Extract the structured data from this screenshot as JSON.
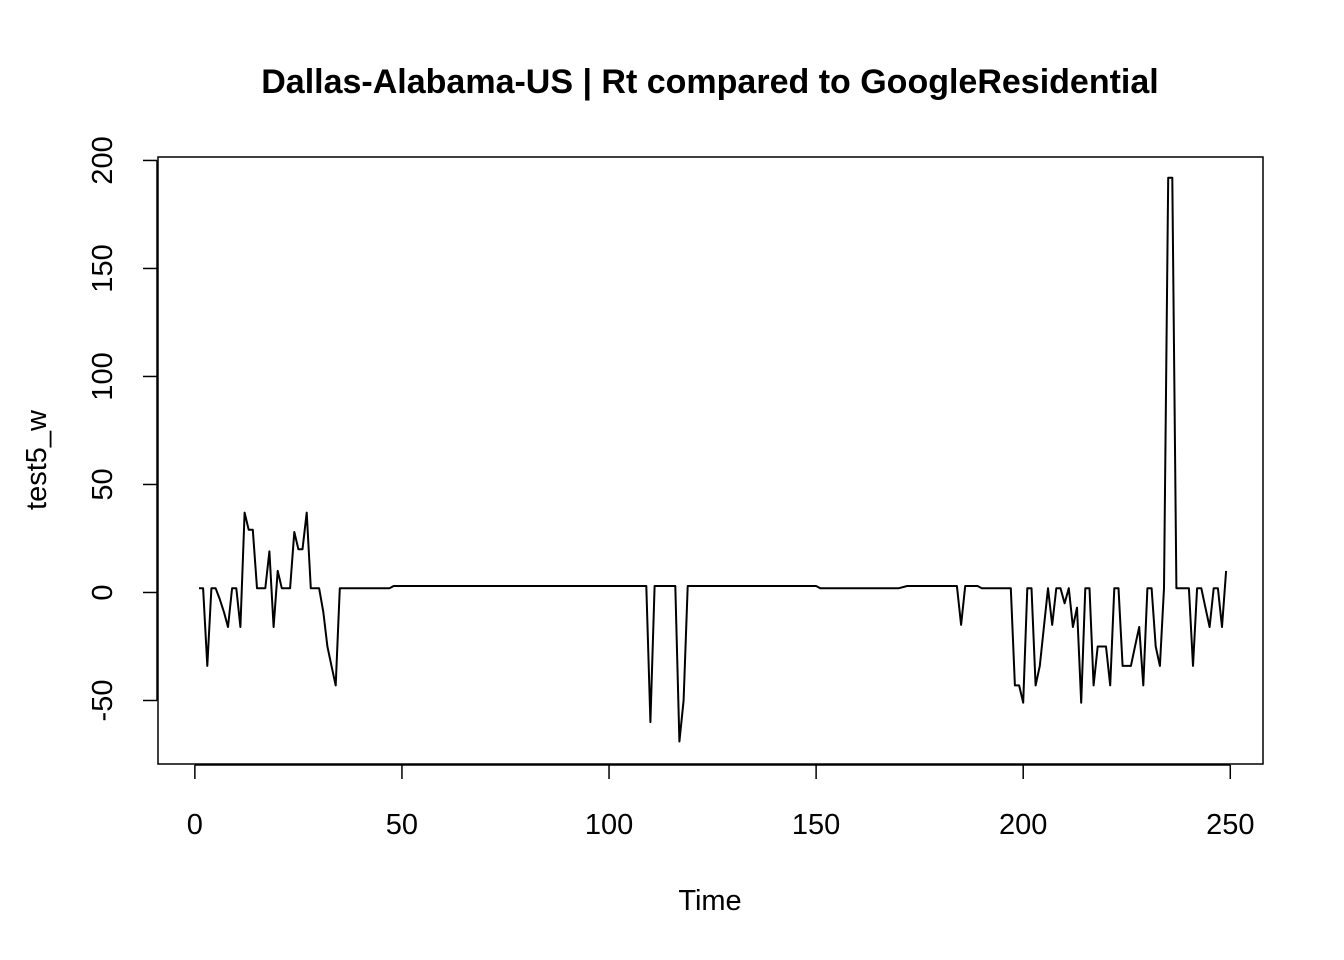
{
  "chart_data": {
    "type": "line",
    "title": "Dallas-Alabama-US | Rt compared to GoogleResidential",
    "xlabel": "Time",
    "ylabel": "test5_w",
    "xlim": [
      -8.9,
      257.9
    ],
    "ylim": [
      -79.4,
      201.6
    ],
    "xticks": [
      0,
      50,
      100,
      150,
      200,
      250
    ],
    "yticks": [
      -50,
      0,
      50,
      100,
      150,
      200
    ],
    "xtick_labels": [
      "0",
      "50",
      "100",
      "150",
      "200",
      "250"
    ],
    "ytick_labels": [
      "-50",
      "0",
      "50",
      "100",
      "150",
      "200"
    ],
    "grid": false,
    "legend": "none",
    "series": [
      {
        "color": "#000000",
        "points": [
          [
            1,
            2
          ],
          [
            2,
            2
          ],
          [
            3,
            -34
          ],
          [
            4,
            2
          ],
          [
            5,
            2
          ],
          [
            6,
            -3
          ],
          [
            7,
            -9
          ],
          [
            8,
            -16
          ],
          [
            9,
            2
          ],
          [
            10,
            2
          ],
          [
            11,
            -16
          ],
          [
            12,
            37
          ],
          [
            13,
            29
          ],
          [
            14,
            29
          ],
          [
            15,
            2
          ],
          [
            16,
            2
          ],
          [
            17,
            2
          ],
          [
            18,
            19
          ],
          [
            19,
            -16
          ],
          [
            20,
            10
          ],
          [
            21,
            2
          ],
          [
            22,
            2
          ],
          [
            23,
            2
          ],
          [
            24,
            28
          ],
          [
            25,
            20
          ],
          [
            26,
            20
          ],
          [
            27,
            37
          ],
          [
            28,
            2
          ],
          [
            29,
            2
          ],
          [
            30,
            2
          ],
          [
            31,
            -9
          ],
          [
            32,
            -25
          ],
          [
            33,
            -34
          ],
          [
            34,
            -43
          ],
          [
            35,
            2
          ],
          [
            36,
            2
          ],
          [
            37,
            2
          ],
          [
            38,
            2
          ],
          [
            39,
            2
          ],
          [
            40,
            2
          ],
          [
            41,
            2
          ],
          [
            42,
            2
          ],
          [
            43,
            2
          ],
          [
            44,
            2
          ],
          [
            45,
            2
          ],
          [
            46,
            2
          ],
          [
            47,
            2
          ],
          [
            48,
            3
          ],
          [
            49,
            3
          ],
          [
            50,
            3
          ],
          [
            60,
            3
          ],
          [
            70,
            3
          ],
          [
            80,
            3
          ],
          [
            90,
            3
          ],
          [
            100,
            3
          ],
          [
            109,
            3
          ],
          [
            110,
            -60
          ],
          [
            111,
            3
          ],
          [
            112,
            3
          ],
          [
            113,
            3
          ],
          [
            114,
            3
          ],
          [
            115,
            3
          ],
          [
            116,
            3
          ],
          [
            117,
            -69
          ],
          [
            118,
            -50
          ],
          [
            119,
            3
          ],
          [
            120,
            3
          ],
          [
            130,
            3
          ],
          [
            140,
            3
          ],
          [
            150,
            3
          ],
          [
            151,
            2
          ],
          [
            160,
            2
          ],
          [
            170,
            2
          ],
          [
            172,
            3
          ],
          [
            180,
            3
          ],
          [
            183,
            3
          ],
          [
            184,
            3
          ],
          [
            185,
            -15
          ],
          [
            186,
            3
          ],
          [
            187,
            3
          ],
          [
            188,
            3
          ],
          [
            189,
            3
          ],
          [
            190,
            2
          ],
          [
            191,
            2
          ],
          [
            192,
            2
          ],
          [
            193,
            2
          ],
          [
            194,
            2
          ],
          [
            195,
            2
          ],
          [
            196,
            2
          ],
          [
            197,
            2
          ],
          [
            198,
            -43
          ],
          [
            199,
            -43
          ],
          [
            200,
            -51
          ],
          [
            201,
            2
          ],
          [
            202,
            2
          ],
          [
            203,
            -43
          ],
          [
            204,
            -34
          ],
          [
            205,
            -16
          ],
          [
            206,
            2
          ],
          [
            207,
            -15
          ],
          [
            208,
            2
          ],
          [
            209,
            2
          ],
          [
            210,
            -5
          ],
          [
            211,
            2
          ],
          [
            212,
            -16
          ],
          [
            213,
            -7
          ],
          [
            214,
            -51
          ],
          [
            215,
            2
          ],
          [
            216,
            2
          ],
          [
            217,
            -43
          ],
          [
            218,
            -25
          ],
          [
            219,
            -25
          ],
          [
            220,
            -25
          ],
          [
            221,
            -43
          ],
          [
            222,
            2
          ],
          [
            223,
            2
          ],
          [
            224,
            -34
          ],
          [
            225,
            -34
          ],
          [
            226,
            -34
          ],
          [
            227,
            -25
          ],
          [
            228,
            -16
          ],
          [
            229,
            -43
          ],
          [
            230,
            2
          ],
          [
            231,
            2
          ],
          [
            232,
            -25
          ],
          [
            233,
            -34
          ],
          [
            234,
            2
          ],
          [
            235,
            192
          ],
          [
            236,
            192
          ],
          [
            237,
            2
          ],
          [
            238,
            2
          ],
          [
            239,
            2
          ],
          [
            240,
            2
          ],
          [
            241,
            -34
          ],
          [
            242,
            2
          ],
          [
            243,
            2
          ],
          [
            244,
            -7
          ],
          [
            245,
            -16
          ],
          [
            246,
            2
          ],
          [
            247,
            2
          ],
          [
            248,
            -16
          ],
          [
            249,
            10
          ]
        ]
      }
    ]
  }
}
